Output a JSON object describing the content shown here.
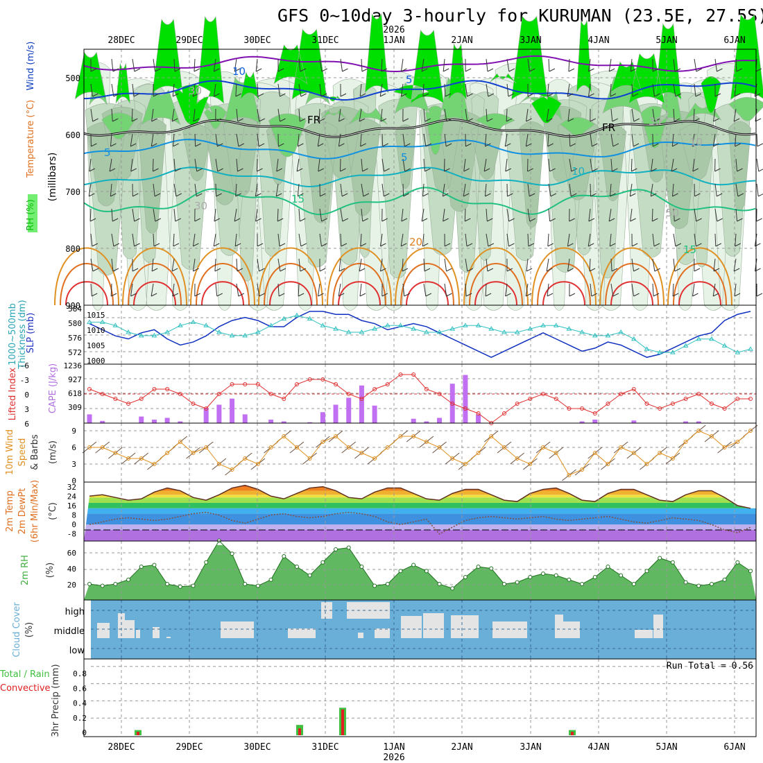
{
  "header": {
    "title": "GFS 0~10day 3-hourly for KURUMAN (23.5E, 27.5S)"
  },
  "dates": {
    "labels": [
      "28DEC",
      "29DEC",
      "30DEC",
      "31DEC",
      "1JAN",
      "2JAN",
      "3JAN",
      "4JAN",
      "5JAN",
      "6JAN"
    ],
    "year": "2026"
  },
  "colors": {
    "rh": "#00e000",
    "temp_warm": "#e08020",
    "temp_cool": "#1060e0",
    "wind_purple": "#8010b0",
    "cape": "#c070f0",
    "li": "#e03030",
    "slp": "#1030c0",
    "thickness": "#30c0c0",
    "wind": "#e09020",
    "rh2m": "#40b040",
    "cloud": "#6aafd8",
    "precip_total": "#40c040",
    "precip_conv": "#e02020"
  },
  "panels": {
    "upper": {
      "ylabel": "(millibars)",
      "legend_rh": "RH (%)",
      "legend_temp": "Temperature (°C)",
      "legend_wind": "Wind (m/s)",
      "yticks": [
        "500",
        "600",
        "700",
        "800",
        "900"
      ],
      "contour_labels": [
        {
          "text": "10",
          "color": "#1060e0"
        },
        {
          "text": "5",
          "color": "#1060e0"
        },
        {
          "text": "5",
          "color": "#1090e0"
        },
        {
          "text": "5",
          "color": "#1090e0"
        },
        {
          "text": "10",
          "color": "#20b0c0"
        },
        {
          "text": "15",
          "color": "#20c080"
        },
        {
          "text": "15",
          "color": "#20c080"
        },
        {
          "text": "20",
          "color": "#e08020"
        },
        {
          "text": "FR",
          "color": "#000000"
        },
        {
          "text": "FR",
          "color": "#000000"
        },
        {
          "text": "30",
          "color": "#aaaaaa"
        },
        {
          "text": "30",
          "color": "#aaaaaa"
        },
        {
          "text": "50",
          "color": "#aaaaaa"
        },
        {
          "text": "30",
          "color": "#aaaaaa"
        },
        {
          "text": "10",
          "color": "#aaaaaa"
        }
      ]
    },
    "slp": {
      "label_a": "1000~500mb",
      "label_b": "Thickness (dm)",
      "label_c": "SLP (mb)",
      "left_ticks": [
        "584",
        "580",
        "576",
        "572"
      ],
      "right_ticks": [
        "1015",
        "1010",
        "1005",
        "1000"
      ]
    },
    "cape": {
      "label_a": "Lifted Index",
      "label_b": "CAPE (J/kg)",
      "left_ticks": [
        "-6",
        "-3",
        "0",
        "3",
        "6"
      ],
      "right_ticks": [
        "1236",
        "927",
        "618",
        "309"
      ]
    },
    "wind10": {
      "label_a": "10m Wind",
      "label_b": "Speed",
      "label_c": "& Barbs",
      "label_d": "(m/s)",
      "ticks": [
        "9",
        "6",
        "3",
        "0"
      ]
    },
    "temp2m": {
      "label_a": "2m Temp",
      "label_b": "2m DewPt",
      "label_c": "(6hr Min/Max)",
      "label_d": "(°C)",
      "ticks": [
        "32",
        "24",
        "16",
        "8",
        "0",
        "-8"
      ]
    },
    "rh2m": {
      "label_a": "2m RH",
      "label_b": "(%)",
      "ticks": [
        "60",
        "40",
        "20"
      ]
    },
    "cloud": {
      "label_a": "Cloud Cover",
      "label_b": "(%)",
      "levels": [
        "high",
        "middle",
        "low"
      ]
    },
    "precip": {
      "label_a": "Total / Rain",
      "label_b": "Convective",
      "label_c": "3hr Precip (mm)",
      "ticks": [
        "0.8",
        "0.6",
        "0.4",
        "0.2",
        "0"
      ],
      "run_total": "Run Total = 0.56"
    }
  },
  "chart_data": {
    "type": "line",
    "x_unit": "3-hourly steps",
    "slp_mb": [
      1011,
      1009,
      1007,
      1006,
      1008,
      1009,
      1006,
      1004,
      1005,
      1007,
      1010,
      1012,
      1013,
      1012,
      1010,
      1010,
      1013,
      1015,
      1015,
      1014,
      1014,
      1012,
      1011,
      1009,
      1010,
      1011,
      1010,
      1008,
      1006,
      1004,
      1002,
      1000,
      1002,
      1004,
      1006,
      1008,
      1006,
      1004,
      1002,
      1003,
      1005,
      1004,
      1002,
      1000,
      1001,
      1003,
      1005,
      1007,
      1008,
      1012,
      1014,
      1015
    ],
    "thickness_dm": [
      581,
      581,
      580,
      578,
      577,
      577,
      578,
      580,
      581,
      580,
      578,
      577,
      577,
      578,
      580,
      582,
      583,
      582,
      580,
      579,
      578,
      578,
      579,
      580,
      580,
      579,
      578,
      578,
      579,
      580,
      580,
      579,
      578,
      578,
      579,
      580,
      580,
      579,
      578,
      577,
      577,
      578,
      576,
      573,
      572,
      572,
      574,
      576,
      576,
      574,
      572,
      573
    ],
    "li": [
      -1,
      0,
      1,
      2,
      1,
      -1,
      -1,
      0,
      2,
      3,
      0,
      -2,
      -2,
      -2,
      0,
      1,
      -2,
      -3,
      -3,
      -2,
      0,
      1,
      -1,
      -2,
      -4,
      -4,
      -1,
      0,
      2,
      3,
      4,
      6,
      4,
      2,
      1,
      0,
      1,
      3,
      3,
      4,
      2,
      0,
      -1,
      2,
      3,
      2,
      1,
      0,
      2,
      3,
      1,
      1
    ],
    "cape_jkg": [
      200,
      50,
      0,
      0,
      150,
      80,
      120,
      40,
      0,
      350,
      420,
      560,
      200,
      0,
      80,
      40,
      0,
      20,
      250,
      420,
      580,
      860,
      400,
      0,
      0,
      100,
      40,
      120,
      900,
      1100,
      200,
      0,
      0,
      0,
      0,
      0,
      0,
      0,
      40,
      80,
      0,
      0,
      60,
      0,
      0,
      0,
      40,
      40,
      0,
      0,
      0,
      0
    ],
    "wind10_ms": [
      6,
      6,
      5,
      4,
      4,
      3,
      5,
      7,
      5,
      6,
      3,
      2,
      4,
      3,
      6,
      8,
      6,
      4,
      7,
      8,
      6,
      5,
      4,
      6,
      8,
      8,
      7,
      6,
      4,
      3,
      5,
      8,
      6,
      4,
      3,
      6,
      5,
      1,
      2,
      5,
      3,
      6,
      5,
      3,
      5,
      4,
      7,
      9,
      8,
      6,
      7,
      9
    ],
    "temp2m_c": [
      25,
      26,
      24,
      22,
      23,
      28,
      31,
      29,
      24,
      22,
      26,
      31,
      33,
      30,
      25,
      23,
      27,
      31,
      32,
      29,
      24,
      23,
      28,
      31,
      31,
      27,
      23,
      22,
      27,
      30,
      30,
      26,
      22,
      21,
      27,
      30,
      31,
      27,
      22,
      21,
      27,
      30,
      30,
      26,
      22,
      21,
      26,
      29,
      29,
      24,
      18,
      16
    ],
    "dewpt_c": [
      4,
      6,
      8,
      9,
      8,
      7,
      8,
      10,
      12,
      13,
      11,
      7,
      5,
      8,
      11,
      12,
      10,
      9,
      10,
      12,
      13,
      12,
      10,
      6,
      4,
      6,
      8,
      -3,
      2,
      7,
      9,
      10,
      9,
      8,
      9,
      10,
      8,
      7,
      8,
      9,
      10,
      8,
      6,
      5,
      7,
      9,
      8,
      7,
      4,
      0,
      -2,
      2
    ],
    "rh2m_pct": [
      20,
      18,
      20,
      25,
      40,
      42,
      20,
      17,
      18,
      45,
      70,
      55,
      20,
      18,
      25,
      52,
      40,
      30,
      45,
      60,
      62,
      40,
      18,
      20,
      35,
      42,
      35,
      20,
      15,
      28,
      40,
      38,
      20,
      22,
      28,
      32,
      30,
      25,
      20,
      28,
      40,
      30,
      20,
      35,
      50,
      45,
      22,
      18,
      20,
      25,
      45,
      35
    ],
    "precip_total_mm": [
      0.06,
      0.12,
      0.32,
      0.06
    ],
    "precip_conv_mm": [
      0.04,
      0.08,
      0.3,
      0.04
    ]
  }
}
